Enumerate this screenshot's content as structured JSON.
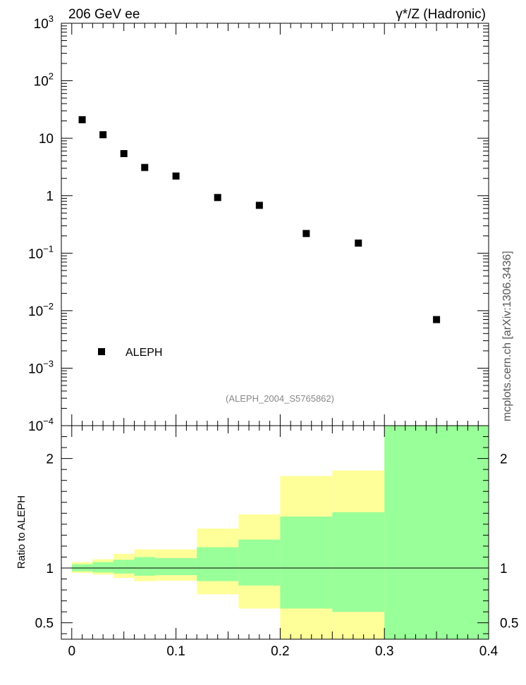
{
  "header": {
    "left_title": "206 GeV ee",
    "right_title": "γ*/Z (Hadronic)"
  },
  "side_label": "mcplots.cern.ch [arXiv:1306.3436]",
  "chart_data": [
    {
      "type": "scatter",
      "yscale": "log",
      "ylim": [
        0.0001,
        1000
      ],
      "xlim": [
        -0.01,
        0.4
      ],
      "y_ticks": [
        {
          "value": 1000,
          "label": "10",
          "exp": "3"
        },
        {
          "value": 100,
          "label": "10",
          "exp": "2"
        },
        {
          "value": 10,
          "label": "10",
          "exp": ""
        },
        {
          "value": 1,
          "label": "1",
          "exp": ""
        },
        {
          "value": 0.1,
          "label": "10",
          "exp": "−1"
        },
        {
          "value": 0.01,
          "label": "10",
          "exp": "−2"
        },
        {
          "value": 0.001,
          "label": "10",
          "exp": "−3"
        },
        {
          "value": 0.0001,
          "label": "10",
          "exp": "−4"
        }
      ],
      "series": [
        {
          "name": "ALEPH",
          "x": [
            0.01,
            0.03,
            0.05,
            0.07,
            0.1,
            0.14,
            0.18,
            0.225,
            0.275,
            0.35
          ],
          "y": [
            21,
            11.5,
            5.4,
            3.1,
            2.2,
            0.93,
            0.68,
            0.22,
            0.15,
            0.007
          ]
        }
      ],
      "legend": {
        "entry": "ALEPH",
        "placement": "bottom-left"
      },
      "annotation": "(ALEPH_2004_S5765862)"
    },
    {
      "type": "area",
      "ylabel": "Ratio to ALEPH",
      "ylim": [
        0.35,
        2.3
      ],
      "xlim": [
        -0.01,
        0.4
      ],
      "x_ticks": [
        {
          "value": 0,
          "label": "0"
        },
        {
          "value": 0.1,
          "label": "0.1"
        },
        {
          "value": 0.2,
          "label": "0.2"
        },
        {
          "value": 0.3,
          "label": "0.3"
        },
        {
          "value": 0.4,
          "label": "0.4"
        }
      ],
      "y_ticks": [
        {
          "value": 2,
          "label": "2"
        },
        {
          "value": 1,
          "label": "1"
        },
        {
          "value": 0.5,
          "label": "0.5"
        }
      ],
      "reference_line": 1,
      "band_colors": {
        "outer": "#ffff99",
        "inner": "#99ff99"
      },
      "bins": [
        {
          "lo": 0.0,
          "hi": 0.02,
          "outer": [
            0.955,
            1.055
          ],
          "inner": [
            0.97,
            1.035
          ]
        },
        {
          "lo": 0.02,
          "hi": 0.04,
          "outer": [
            0.94,
            1.08
          ],
          "inner": [
            0.96,
            1.055
          ]
        },
        {
          "lo": 0.04,
          "hi": 0.06,
          "outer": [
            0.91,
            1.13
          ],
          "inner": [
            0.95,
            1.075
          ]
        },
        {
          "lo": 0.06,
          "hi": 0.08,
          "outer": [
            0.88,
            1.17
          ],
          "inner": [
            0.93,
            1.1
          ]
        },
        {
          "lo": 0.08,
          "hi": 0.12,
          "outer": [
            0.885,
            1.17
          ],
          "inner": [
            0.935,
            1.09
          ]
        },
        {
          "lo": 0.12,
          "hi": 0.16,
          "outer": [
            0.76,
            1.36
          ],
          "inner": [
            0.88,
            1.19
          ]
        },
        {
          "lo": 0.16,
          "hi": 0.2,
          "outer": [
            0.63,
            1.49
          ],
          "inner": [
            0.84,
            1.26
          ]
        },
        {
          "lo": 0.2,
          "hi": 0.25,
          "outer": [
            0.35,
            1.84
          ],
          "inner": [
            0.63,
            1.47
          ]
        },
        {
          "lo": 0.25,
          "hi": 0.3,
          "outer": [
            0.35,
            1.89
          ],
          "inner": [
            0.6,
            1.51
          ]
        },
        {
          "lo": 0.3,
          "hi": 0.4,
          "outer": [
            0.35,
            2.3
          ],
          "inner": [
            0.35,
            2.3
          ]
        }
      ]
    }
  ]
}
